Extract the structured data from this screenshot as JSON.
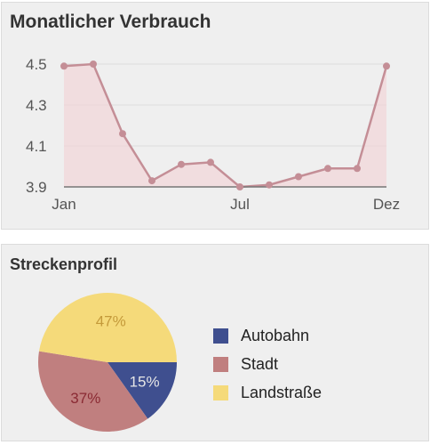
{
  "usage_card": {
    "title": "Monatlicher Verbrauch"
  },
  "route_card": {
    "title": "Streckenprofil"
  },
  "colors": {
    "line": "#c48e96",
    "area": "#f2d7da",
    "grid": "#dcdcdc",
    "axis": "#777777",
    "autobahn": "#3f4f8f",
    "stadt": "#c07f7f",
    "landstrasse": "#f5da7a"
  },
  "chart_data": [
    {
      "type": "area",
      "title": "Monatlicher Verbrauch",
      "x": [
        1,
        2,
        3,
        4,
        5,
        6,
        7,
        8,
        9,
        10,
        11,
        12
      ],
      "x_tick_labels": [
        {
          "x": 1,
          "label": "Jan"
        },
        {
          "x": 7,
          "label": "Jul"
        },
        {
          "x": 12,
          "label": "Dez"
        }
      ],
      "series": [
        {
          "values": [
            4.49,
            4.5,
            4.16,
            3.93,
            4.01,
            4.02,
            3.9,
            3.91,
            3.95,
            3.99,
            3.99,
            4.49
          ]
        }
      ],
      "y_ticks": [
        "4.5",
        "4.3",
        "4.1",
        "3.9"
      ],
      "ylim": [
        3.9,
        4.5
      ],
      "grid": true,
      "legend": "none"
    },
    {
      "type": "pie",
      "title": "Streckenprofil",
      "slices": [
        {
          "name": "Autobahn",
          "value": 15,
          "label": "15%",
          "color": "#3f4f8f",
          "label_color": "#e6e6e6"
        },
        {
          "name": "Stadt",
          "value": 37,
          "label": "37%",
          "color": "#c07f7f",
          "label_color": "#8a2a33"
        },
        {
          "name": "Landstraße",
          "value": 47,
          "label": "47%",
          "color": "#f5da7a",
          "label_color": "#c49a3a"
        }
      ],
      "legend": "right"
    }
  ]
}
